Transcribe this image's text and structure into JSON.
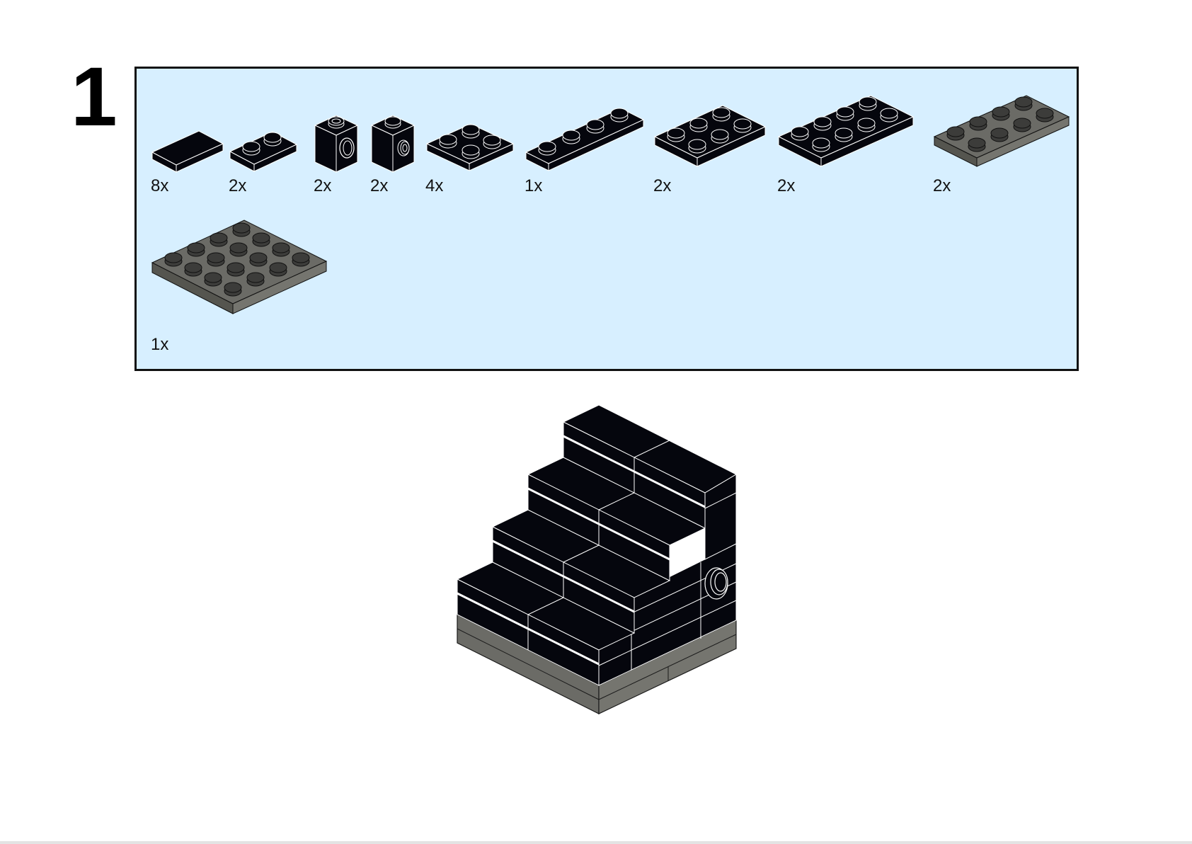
{
  "step": {
    "number": "1"
  },
  "parts": [
    {
      "name": "plate-tile-1x2",
      "qty": "8x",
      "color": "#05060d"
    },
    {
      "name": "plate-1x2",
      "qty": "2x",
      "color": "#05060d"
    },
    {
      "name": "technic-brick-1x1-hole",
      "qty": "2x",
      "color": "#05060d"
    },
    {
      "name": "brick-1x1-stud-side",
      "qty": "2x",
      "color": "#05060d"
    },
    {
      "name": "plate-2x2",
      "qty": "4x",
      "color": "#05060d"
    },
    {
      "name": "plate-1x4",
      "qty": "1x",
      "color": "#05060d"
    },
    {
      "name": "plate-2x3",
      "qty": "2x",
      "color": "#05060d"
    },
    {
      "name": "plate-2x4",
      "qty": "2x",
      "color": "#05060d"
    },
    {
      "name": "plate-2x4-gray",
      "qty": "2x",
      "color": "#6b6b66"
    },
    {
      "name": "plate-4x4-gray",
      "qty": "1x",
      "color": "#6b6b66"
    }
  ],
  "colors": {
    "panel_background": "#d7efff",
    "black_brick": "#05060d",
    "dark_gray_plate": "#6b6b66"
  }
}
